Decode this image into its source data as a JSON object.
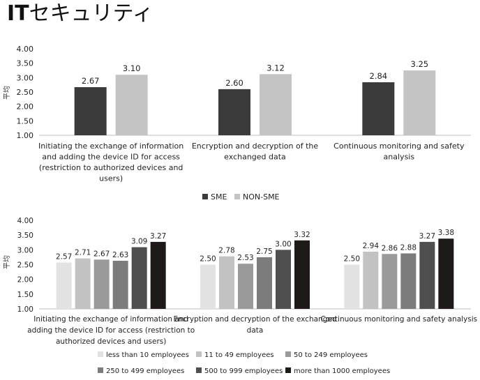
{
  "page_title_bold": "IT",
  "page_title_rest": "セキュリティ",
  "chart_data": [
    {
      "type": "bar",
      "title": "",
      "ylabel": "平均",
      "ylim": [
        1.0,
        4.0
      ],
      "yticks": [
        "1.00",
        "1.50",
        "2.00",
        "2.50",
        "3.00",
        "3.50",
        "4.00"
      ],
      "categories": [
        "Initiating the exchange of information and adding the device ID for access (restriction to authorized devices and users)",
        "Encryption and decryption of the exchanged data",
        "Continuous monitoring and safety analysis"
      ],
      "category_lines": [
        [
          "Initiating the exchange of information",
          "and adding the device ID for access",
          "(restriction to authorized devices and",
          "users)"
        ],
        [
          "Encryption and decryption of the",
          "exchanged data"
        ],
        [
          "Continuous monitoring and safety",
          "analysis"
        ]
      ],
      "series": [
        {
          "name": "SME",
          "values": [
            2.67,
            2.6,
            2.84
          ],
          "labels": [
            "2.67",
            "2.60",
            "2.84"
          ],
          "color": "#3b3b3b"
        },
        {
          "name": "NON-SME",
          "values": [
            3.1,
            3.12,
            3.25
          ],
          "labels": [
            "3.10",
            "3.12",
            "3.25"
          ],
          "color": "#c4c4c4"
        }
      ],
      "legend_position": "bottom",
      "grid": false
    },
    {
      "type": "bar",
      "title": "",
      "ylabel": "平均",
      "ylim": [
        1.0,
        4.0
      ],
      "yticks": [
        "1.00",
        "1.50",
        "2.00",
        "2.50",
        "3.00",
        "3.50",
        "4.00"
      ],
      "categories": [
        "Initiating the exchange of information and adding the device ID for access (restriction to authorized devices and users)",
        "Encryption and decryption of the exchanged data",
        "Continuous monitoring and safety analysis"
      ],
      "category_lines": [
        [
          "Initiating the exchange of information and",
          "adding the device ID for access (restriction to",
          "authorized devices and users)"
        ],
        [
          "Encryption and decryption of the exchanged",
          "data"
        ],
        [
          "Continuous monitoring and safety analysis"
        ]
      ],
      "series": [
        {
          "name": "less than 10 employees",
          "values": [
            2.57,
            2.5,
            2.5
          ],
          "labels": [
            "2.57",
            "2.50",
            "2.50"
          ],
          "color": "#e2e2e2"
        },
        {
          "name": "11 to 49 employees",
          "values": [
            2.71,
            2.78,
            2.94
          ],
          "labels": [
            "2.71",
            "2.78",
            "2.94"
          ],
          "color": "#c2c2c2"
        },
        {
          "name": "50 to 249 employees",
          "values": [
            2.67,
            2.53,
            2.86
          ],
          "labels": [
            "2.67",
            "2.53",
            "2.86"
          ],
          "color": "#9a9a9a"
        },
        {
          "name": "250 to 499 employees",
          "values": [
            2.63,
            2.75,
            2.88
          ],
          "labels": [
            "2.63",
            "2.75",
            "2.88"
          ],
          "color": "#7c7c7c"
        },
        {
          "name": "500 to 999 employees",
          "values": [
            3.09,
            3.0,
            3.27
          ],
          "labels": [
            "3.09",
            "3.00",
            "3.27"
          ],
          "color": "#4f4f4f"
        },
        {
          "name": "more than 1000 employees",
          "values": [
            3.27,
            3.32,
            3.38
          ],
          "labels": [
            "3.27",
            "3.32",
            "3.38"
          ],
          "color": "#1e1a1a"
        }
      ],
      "legend_position": "bottom",
      "grid": false
    }
  ]
}
